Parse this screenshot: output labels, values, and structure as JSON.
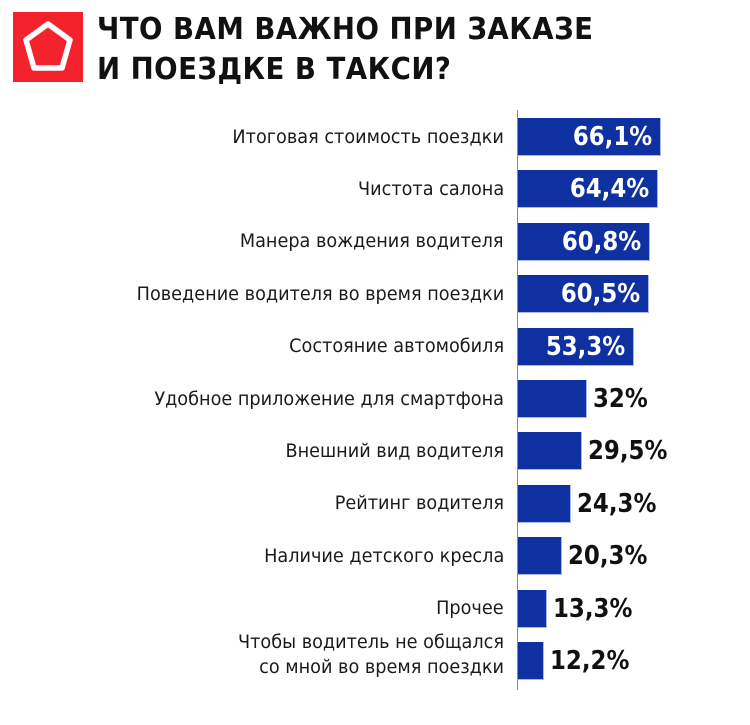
{
  "header": {
    "logo_icon": "pentagon-icon",
    "title_line1": "ЧТО ВАМ ВАЖНО ПРИ ЗАКАЗЕ",
    "title_line2": "И ПОЕЗДКЕ В ТАКСИ?"
  },
  "colors": {
    "bar": "#0f30a0",
    "logo_bg": "#f4222d",
    "value_inside": "#ffffff",
    "value_outside": "#111111"
  },
  "rows": [
    {
      "label": "Итоговая стоимость поездки",
      "value": 66.1,
      "value_label": "66,1%"
    },
    {
      "label": "Чистота салона",
      "value": 64.4,
      "value_label": "64,4%"
    },
    {
      "label": "Манера вождения водителя",
      "value": 60.8,
      "value_label": "60,8%"
    },
    {
      "label": "Поведение водителя во время поездки",
      "value": 60.5,
      "value_label": "60,5%"
    },
    {
      "label": "Состояние автомобиля",
      "value": 53.3,
      "value_label": "53,3%"
    },
    {
      "label": "Удобное приложение для смартфона",
      "value": 32,
      "value_label": "32%"
    },
    {
      "label": "Внешний вид водителя",
      "value": 29.5,
      "value_label": "29,5%"
    },
    {
      "label": "Рейтинг водителя",
      "value": 24.3,
      "value_label": "24,3%"
    },
    {
      "label": "Наличие детского кресла",
      "value": 20.3,
      "value_label": "20,3%"
    },
    {
      "label": "Прочее",
      "value": 13.3,
      "value_label": "13,3%"
    },
    {
      "label": "Чтобы водитель не общался\nсо мной во время поездки",
      "label_line1": "Чтобы водитель не общался",
      "label_line2": "со мной во время поездки",
      "value": 12.2,
      "value_label": "12,2%"
    }
  ],
  "chart_data": {
    "type": "bar",
    "orientation": "horizontal",
    "title": "ЧТО ВАМ ВАЖНО ПРИ ЗАКАЗЕ И ПОЕЗДКЕ В ТАКСИ?",
    "xlabel": "",
    "ylabel": "",
    "categories": [
      "Итоговая стоимость поездки",
      "Чистота салона",
      "Манера вождения водителя",
      "Поведение водителя во время поездки",
      "Состояние автомобиля",
      "Удобное приложение для смартфона",
      "Внешний вид водителя",
      "Рейтинг водителя",
      "Наличие детского кресла",
      "Прочее",
      "Чтобы водитель не общался со мной во время поездки"
    ],
    "values": [
      66.1,
      64.4,
      60.8,
      60.5,
      53.3,
      32,
      29.5,
      24.3,
      20.3,
      13.3,
      12.2
    ],
    "unit": "%",
    "data_labels": true,
    "grid": false,
    "legend": "none"
  }
}
